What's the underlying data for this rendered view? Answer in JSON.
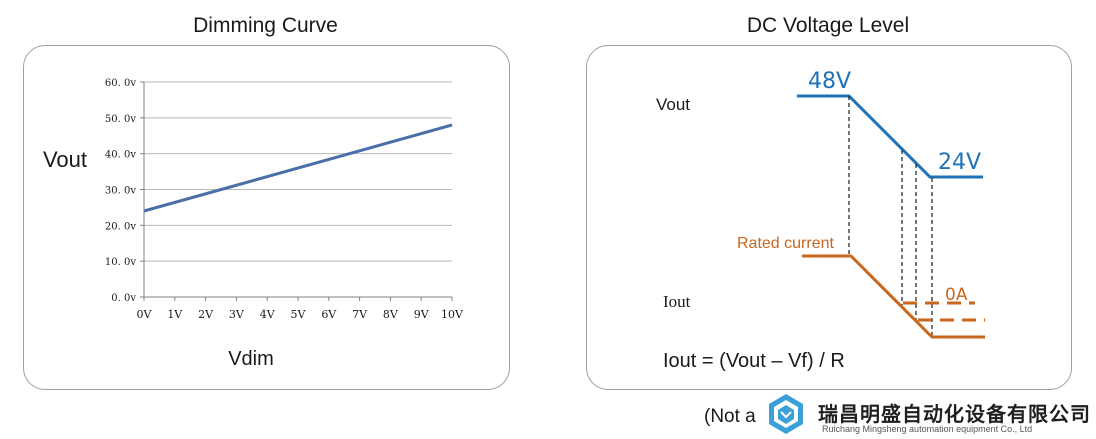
{
  "left_panel": {
    "title": "Dimming Curve",
    "chart_data": {
      "type": "line",
      "title": "Dimming Curve",
      "xlabel": "Vdim",
      "ylabel": "Vout",
      "x_ticks": [
        "0V",
        "1V",
        "2V",
        "3V",
        "4V",
        "5V",
        "6V",
        "7V",
        "8V",
        "9V",
        "10V"
      ],
      "y_ticks": [
        "0. 0v",
        "10. 0v",
        "20. 0v",
        "30. 0v",
        "40. 0v",
        "50. 0v",
        "60. 0v"
      ],
      "xlim": [
        0,
        10
      ],
      "ylim": [
        0,
        60
      ],
      "grid": "horizontal",
      "series": [
        {
          "x": [
            0,
            10
          ],
          "y": [
            24,
            48
          ],
          "color": "#4a6fa8"
        }
      ]
    }
  },
  "right_panel": {
    "title": "DC Voltage Level",
    "vout_label": "Vout",
    "iout_label": "Iout",
    "high_voltage": "48V",
    "low_voltage": "24V",
    "rated_current": "Rated current",
    "zero_current": "0A",
    "formula": "Iout = (Vout – Vf) / R",
    "voltage_color": "#1e73b8",
    "current_color": "#c8671e"
  },
  "footer": {
    "note": "(Not a",
    "logo_name": "瑞昌明盛自动化设备有限公司",
    "logo_sub": "Ruichang Mingsheng automation equipment Co., Ltd"
  }
}
